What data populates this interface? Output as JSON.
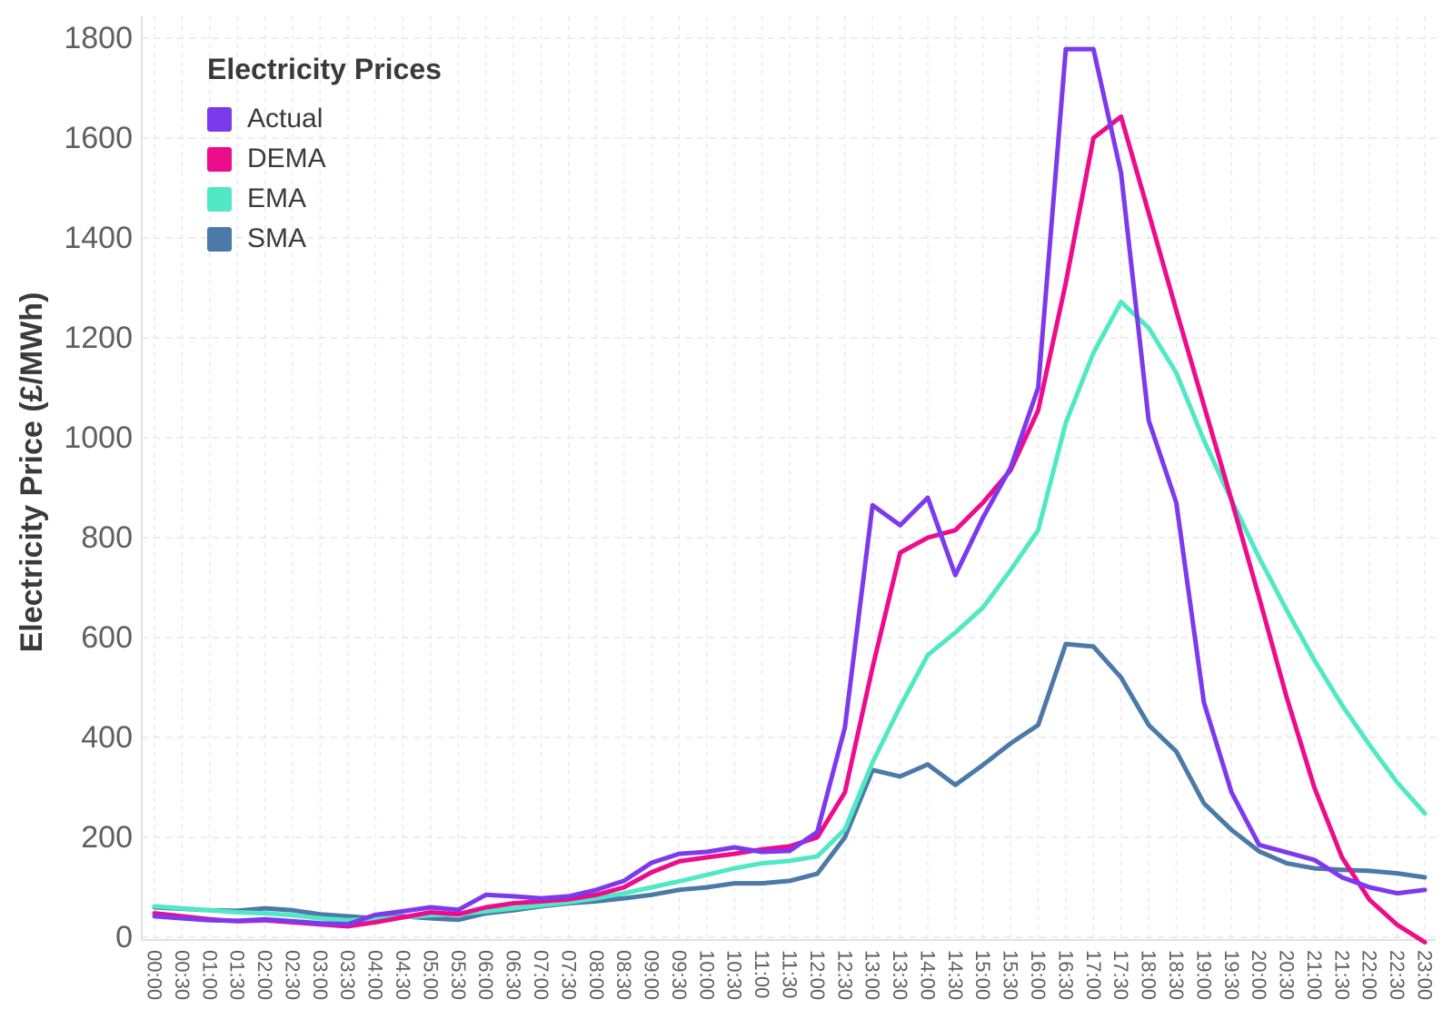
{
  "legend": {
    "title": "Electricity Prices",
    "items": [
      {
        "label": "Actual",
        "color": "#7d3aed"
      },
      {
        "label": "DEMA",
        "color": "#ec0c8c"
      },
      {
        "label": "EMA",
        "color": "#50e8c5"
      },
      {
        "label": "SMA",
        "color": "#4b79a8"
      }
    ]
  },
  "y_axis": {
    "title": "Electricity Price (£/MWh)",
    "tick_values": [
      0,
      200,
      400,
      600,
      800,
      1000,
      1200,
      1400,
      1600,
      1800
    ],
    "label_color": "#5f5f5f"
  },
  "x_axis": {
    "tick_labels": [
      "00:00",
      "00:30",
      "01:00",
      "01:30",
      "02:00",
      "02:30",
      "03:00",
      "03:30",
      "04:00",
      "04:30",
      "05:00",
      "05:30",
      "06:00",
      "06:30",
      "07:00",
      "07:30",
      "08:00",
      "08:30",
      "09:00",
      "09:30",
      "10:00",
      "10:30",
      "11:00",
      "11:30",
      "12:00",
      "12:30",
      "13:00",
      "13:30",
      "14:00",
      "14:30",
      "15:00",
      "15:30",
      "16:00",
      "16:30",
      "17:00",
      "17:30",
      "18:00",
      "18:30",
      "19:00",
      "19:30",
      "20:00",
      "20:30",
      "21:00",
      "21:30",
      "22:00",
      "22:30",
      "23:00"
    ],
    "label_color": "#5f5f5f"
  },
  "chart_data": {
    "type": "line",
    "title": "Electricity Prices",
    "xlabel": "",
    "ylabel": "Electricity Price (£/MWh)",
    "ylim": [
      0,
      1800
    ],
    "grid": true,
    "legend_position": "top-left",
    "categories": [
      "00:00",
      "00:30",
      "01:00",
      "01:30",
      "02:00",
      "02:30",
      "03:00",
      "03:30",
      "04:00",
      "04:30",
      "05:00",
      "05:30",
      "06:00",
      "06:30",
      "07:00",
      "07:30",
      "08:00",
      "08:30",
      "09:00",
      "09:30",
      "10:00",
      "10:30",
      "11:00",
      "11:30",
      "12:00",
      "12:30",
      "13:00",
      "13:30",
      "14:00",
      "14:30",
      "15:00",
      "15:30",
      "16:00",
      "16:30",
      "17:00",
      "17:30",
      "18:00",
      "18:30",
      "19:00",
      "19:30",
      "20:00",
      "20:30",
      "21:00",
      "21:30",
      "22:00",
      "22:30",
      "23:00"
    ],
    "series": [
      {
        "name": "Actual",
        "color": "#7d3aed",
        "values": [
          42,
          38,
          34,
          33,
          36,
          32,
          28,
          26,
          45,
          52,
          60,
          55,
          85,
          82,
          78,
          82,
          95,
          113,
          149,
          167,
          171,
          180,
          171,
          173,
          211,
          420,
          865,
          825,
          880,
          725,
          840,
          940,
          1100,
          1778,
          1778,
          1530,
          1035,
          870,
          470,
          290,
          185,
          170,
          155,
          120,
          100,
          88,
          95
        ]
      },
      {
        "name": "DEMA",
        "color": "#ec0c8c",
        "values": [
          48,
          42,
          36,
          32,
          34,
          30,
          26,
          22,
          30,
          40,
          50,
          46,
          60,
          68,
          72,
          76,
          85,
          100,
          130,
          152,
          160,
          167,
          176,
          182,
          200,
          290,
          540,
          770,
          800,
          815,
          870,
          935,
          1055,
          1310,
          1600,
          1643,
          1450,
          1255,
          1065,
          875,
          680,
          480,
          300,
          160,
          75,
          25,
          -10
        ]
      },
      {
        "name": "EMA",
        "color": "#50e8c5",
        "values": [
          62,
          58,
          54,
          50,
          48,
          44,
          38,
          34,
          36,
          40,
          44,
          46,
          52,
          58,
          64,
          70,
          78,
          88,
          100,
          112,
          125,
          138,
          148,
          153,
          162,
          216,
          350,
          462,
          565,
          610,
          660,
          735,
          815,
          1030,
          1170,
          1272,
          1220,
          1130,
          995,
          875,
          760,
          655,
          555,
          465,
          385,
          310,
          248
        ]
      },
      {
        "name": "SMA",
        "color": "#4b79a8",
        "values": [
          60,
          57,
          54,
          53,
          58,
          54,
          46,
          42,
          38,
          42,
          38,
          35,
          48,
          54,
          62,
          68,
          72,
          78,
          85,
          95,
          100,
          108,
          108,
          113,
          127,
          200,
          335,
          322,
          346,
          305,
          345,
          388,
          425,
          587,
          582,
          520,
          425,
          372,
          268,
          215,
          172,
          148,
          138,
          135,
          133,
          128,
          120
        ]
      }
    ]
  },
  "style": {
    "grid_color": "#e7e7e7",
    "panel_border_color": "#d8d8d8",
    "background": "#ffffff"
  }
}
